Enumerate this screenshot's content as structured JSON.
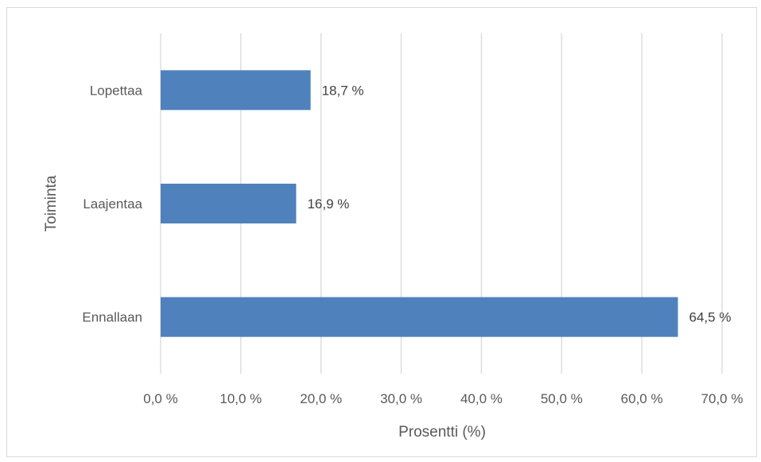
{
  "chart_data": {
    "type": "bar",
    "orientation": "horizontal",
    "categories": [
      "Lopettaa",
      "Laajentaa",
      "Ennallaan"
    ],
    "values": [
      18.7,
      16.9,
      64.5
    ],
    "data_labels": [
      "18,7 %",
      "16,9 %",
      "64,5 %"
    ],
    "xlabel": "Prosentti (%)",
    "ylabel": "Toiminta",
    "xlim": [
      0,
      70
    ],
    "x_ticks": [
      "0,0 %",
      "10,0 %",
      "20,0 %",
      "30,0 %",
      "40,0 %",
      "50,0 %",
      "60,0 %",
      "70,0 %"
    ],
    "grid": "vertical",
    "legend": "none",
    "bar_color": "#4f81bd",
    "grid_color": "#d9d9d9"
  }
}
